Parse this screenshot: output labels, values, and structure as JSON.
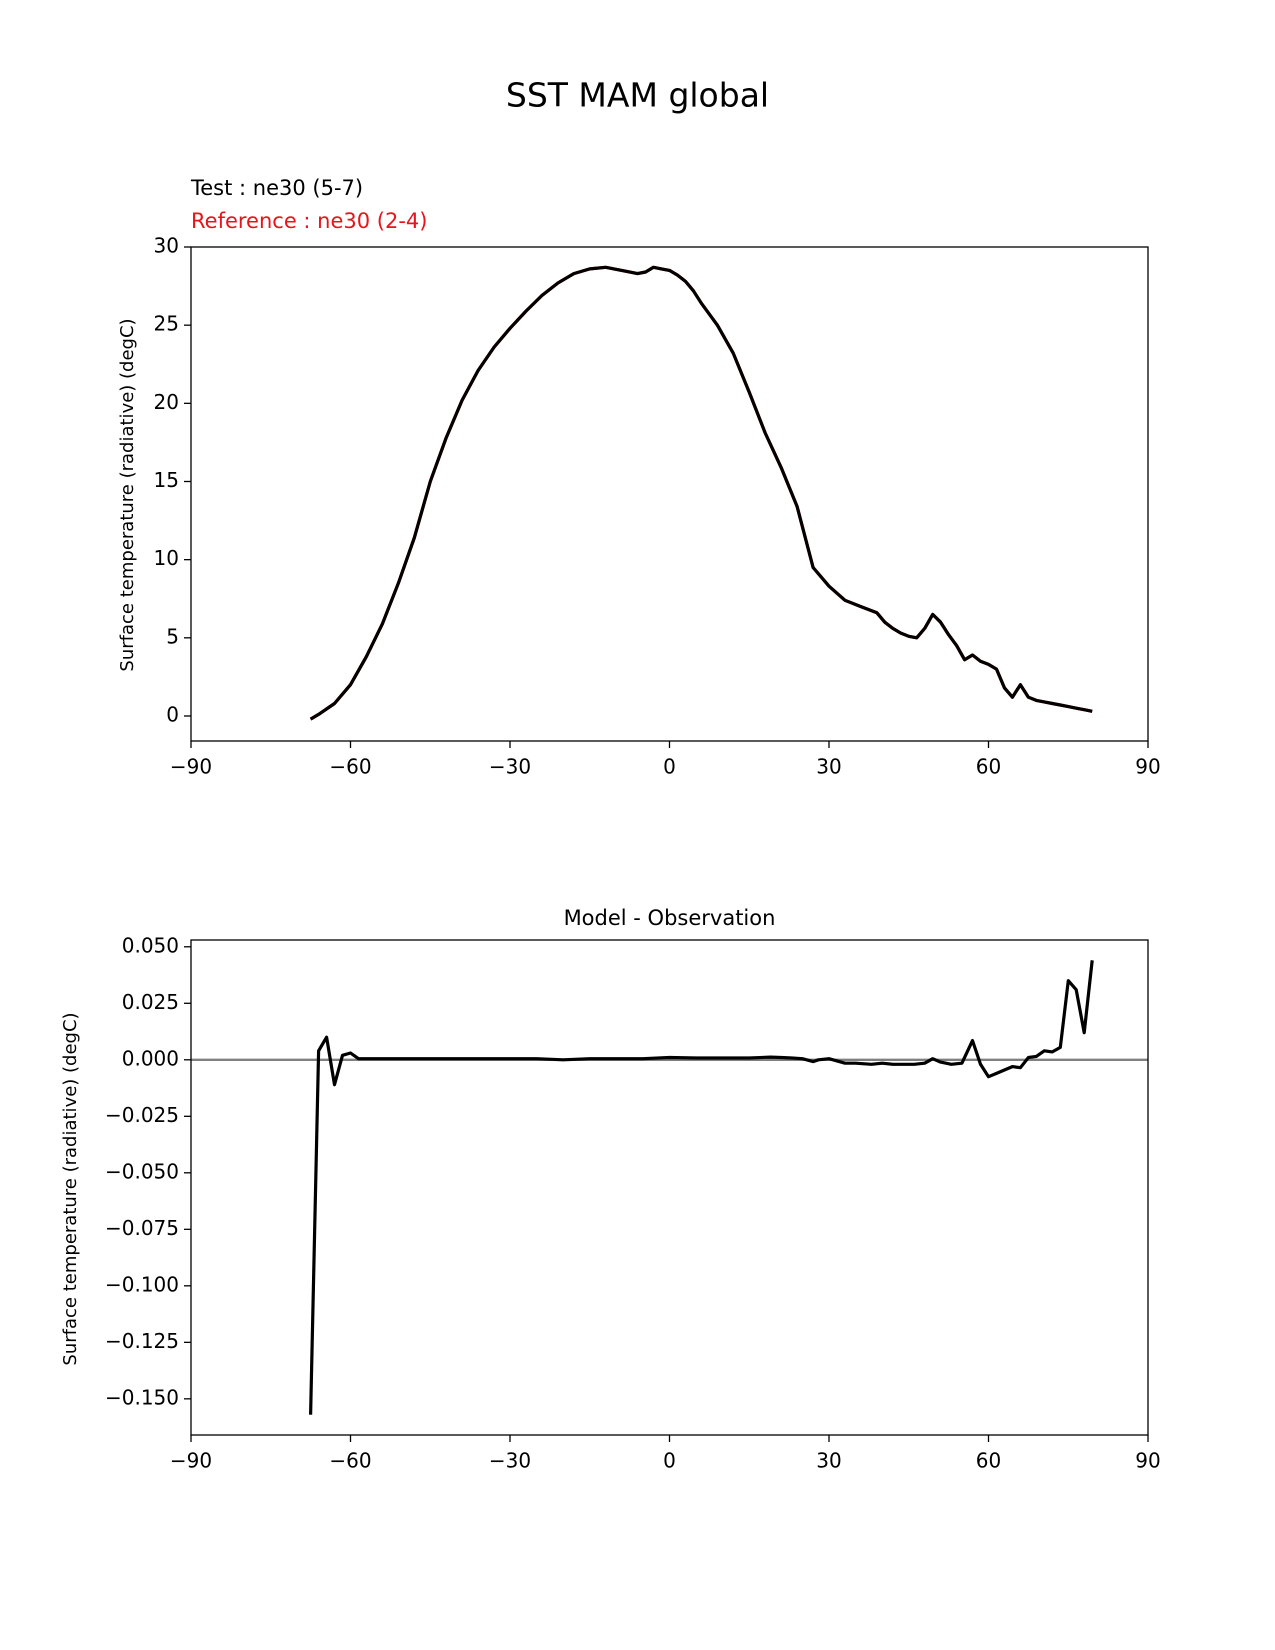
{
  "figure_title": "SST MAM global",
  "chart_data": [
    {
      "type": "line",
      "title_left_test": "Test : ne30 (5-7)",
      "title_left_ref": "Reference : ne30 (2-4)",
      "xlabel": "",
      "ylabel": "Surface temperature (radiative) (degC)",
      "xlim": [
        -90,
        90
      ],
      "ylim": [
        -1.6,
        30
      ],
      "xticks": [
        -90,
        -60,
        -30,
        0,
        30,
        60,
        90
      ],
      "xtick_labels": [
        "−90",
        "−60",
        "−30",
        "0",
        "30",
        "60",
        "90"
      ],
      "yticks": [
        0,
        5,
        10,
        15,
        20,
        25,
        30
      ],
      "ytick_labels": [
        "0",
        "5",
        "10",
        "15",
        "20",
        "25",
        "30"
      ],
      "series": [
        {
          "name": "Test : ne30 (5-7)",
          "color": "#000000",
          "x": [
            -67.5,
            -66,
            -63,
            -60,
            -57,
            -54,
            -51,
            -48,
            -45,
            -42,
            -39,
            -36,
            -33,
            -30,
            -27,
            -24,
            -21,
            -18,
            -15,
            -12,
            -9,
            -6,
            -4.5,
            -3,
            -1.5,
            0,
            1.5,
            3,
            4.5,
            6,
            9,
            12,
            15,
            18,
            21,
            24,
            27,
            30,
            33,
            36,
            39,
            40.5,
            42,
            43.5,
            45,
            46.5,
            48,
            49.5,
            51,
            52.5,
            54,
            55.5,
            57,
            58.5,
            60,
            61.5,
            63,
            64.5,
            66,
            67.5,
            69,
            70.5,
            72,
            73.5,
            75,
            76.5,
            78,
            79.5
          ],
          "y": [
            -0.2,
            0.1,
            0.8,
            2.0,
            3.8,
            5.9,
            8.5,
            11.4,
            15.0,
            17.8,
            20.2,
            22.1,
            23.6,
            24.8,
            25.9,
            26.9,
            27.7,
            28.3,
            28.6,
            28.7,
            28.5,
            28.3,
            28.4,
            28.7,
            28.6,
            28.5,
            28.2,
            27.8,
            27.2,
            26.4,
            25.0,
            23.2,
            20.7,
            18.1,
            15.9,
            13.4,
            9.5,
            8.3,
            7.4,
            7.0,
            6.6,
            6.0,
            5.6,
            5.3,
            5.1,
            5.0,
            5.6,
            6.5,
            6.0,
            5.2,
            4.5,
            3.6,
            3.9,
            3.5,
            3.3,
            3.0,
            1.8,
            1.2,
            2.0,
            1.2,
            1.0,
            0.9,
            0.8,
            0.7,
            0.6,
            0.5,
            0.4,
            0.3
          ]
        },
        {
          "name": "Reference : ne30 (2-4)",
          "color": "#e8141b",
          "x": [
            -67.5,
            -66,
            -63,
            -60,
            -57,
            -54,
            -51,
            -48,
            -45,
            -42,
            -39,
            -36,
            -33,
            -30,
            -27,
            -24,
            -21,
            -18,
            -15,
            -12,
            -9,
            -6,
            -4.5,
            -3,
            -1.5,
            0,
            1.5,
            3,
            4.5,
            6,
            9,
            12,
            15,
            18,
            21,
            24,
            27,
            30,
            33,
            36,
            39,
            40.5,
            42,
            43.5,
            45,
            46.5,
            48,
            49.5,
            51,
            52.5,
            54,
            55.5,
            57,
            58.5,
            60,
            61.5,
            63,
            64.5,
            66,
            67.5,
            69,
            70.5,
            72,
            73.5,
            75,
            76.5,
            78,
            79.5
          ],
          "y": [
            -0.2,
            0.1,
            0.8,
            2.0,
            3.8,
            5.9,
            8.5,
            11.4,
            15.0,
            17.8,
            20.2,
            22.1,
            23.6,
            24.8,
            25.9,
            26.9,
            27.7,
            28.3,
            28.6,
            28.7,
            28.5,
            28.3,
            28.4,
            28.7,
            28.6,
            28.5,
            28.2,
            27.8,
            27.2,
            26.4,
            25.0,
            23.2,
            20.7,
            18.1,
            15.9,
            13.4,
            9.5,
            8.3,
            7.4,
            7.0,
            6.6,
            6.0,
            5.6,
            5.3,
            5.1,
            5.0,
            5.6,
            6.5,
            6.0,
            5.2,
            4.5,
            3.6,
            3.9,
            3.5,
            3.3,
            3.0,
            1.8,
            1.2,
            2.0,
            1.2,
            1.0,
            0.9,
            0.8,
            0.7,
            0.6,
            0.5,
            0.4,
            0.3
          ]
        }
      ]
    },
    {
      "type": "line",
      "title": "Model - Observation",
      "xlabel": "",
      "ylabel": "Surface temperature (radiative) (degC)",
      "xlim": [
        -90,
        90
      ],
      "ylim": [
        -0.166,
        0.053
      ],
      "xticks": [
        -90,
        -60,
        -30,
        0,
        30,
        60,
        90
      ],
      "xtick_labels": [
        "−90",
        "−60",
        "−30",
        "0",
        "30",
        "60",
        "90"
      ],
      "yticks": [
        0.05,
        0.025,
        0,
        -0.025,
        -0.05,
        -0.075,
        -0.1,
        -0.125,
        -0.15
      ],
      "ytick_labels": [
        "0.050",
        "0.025",
        "0.000",
        "−0.025",
        "−0.050",
        "−0.075",
        "−0.100",
        "−0.125",
        "−0.150"
      ],
      "zero_line_color": "#808080",
      "series": [
        {
          "name": "Model - Observation",
          "color": "#000000",
          "x": [
            -67.5,
            -66,
            -64.5,
            -63,
            -61.5,
            -60,
            -58.5,
            -55,
            -50,
            -45,
            -40,
            -35,
            -30,
            -25,
            -20,
            -15,
            -10,
            -5,
            0,
            5,
            10,
            15,
            19,
            21,
            23,
            25,
            27,
            28,
            30,
            33,
            35,
            38,
            40,
            42,
            44,
            46,
            48,
            49.5,
            51,
            53,
            55,
            57,
            58.5,
            60,
            61.5,
            63,
            64.5,
            66,
            67.5,
            69,
            70.5,
            72,
            73.5,
            75,
            76.5,
            78,
            79.5
          ],
          "y": [
            -0.157,
            0.004,
            0.01,
            -0.011,
            0.002,
            0.003,
            0.0005,
            0.0005,
            0.0005,
            0.0005,
            0.0005,
            0.0005,
            0.0005,
            0.0005,
            0.0,
            0.0005,
            0.0005,
            0.0005,
            0.001,
            0.0008,
            0.0008,
            0.0008,
            0.0012,
            0.001,
            0.0008,
            0.0005,
            -0.0008,
            0.0,
            0.0005,
            -0.0015,
            -0.0015,
            -0.002,
            -0.0015,
            -0.002,
            -0.002,
            -0.002,
            -0.0015,
            0.0005,
            -0.001,
            -0.002,
            -0.0015,
            0.0085,
            -0.002,
            -0.0075,
            -0.006,
            -0.0045,
            -0.003,
            -0.0035,
            0.001,
            0.0015,
            0.004,
            0.0035,
            0.0055,
            0.035,
            0.031,
            0.012,
            0.044
          ]
        }
      ]
    }
  ]
}
